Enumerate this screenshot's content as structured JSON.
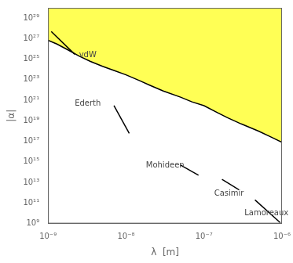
{
  "chart_data": {
    "type": "line",
    "log": true,
    "grid": false,
    "x_label": "λ  [m]",
    "y_label": "|α|",
    "xlim": [
      1e-09,
      1e-06
    ],
    "ylim": [
      1000000000.0,
      1e+30
    ],
    "xticks": [
      {
        "value": 1e-09,
        "label": "10⁻⁹"
      },
      {
        "value": 1e-08,
        "label": "10⁻⁸"
      },
      {
        "value": 1e-07,
        "label": "10⁻⁷"
      },
      {
        "value": 1e-06,
        "label": "10⁻⁶"
      }
    ],
    "yticks": [
      {
        "value": 1000000000.0,
        "label": "10⁹"
      },
      {
        "value": 100000000000.0,
        "label": "10¹¹"
      },
      {
        "value": 10000000000000.0,
        "label": "10¹³"
      },
      {
        "value": 1000000000000000.0,
        "label": "10¹⁵"
      },
      {
        "value": 1e+17,
        "label": "10¹⁷"
      },
      {
        "value": 1e+19,
        "label": "10¹⁹"
      },
      {
        "value": 1e+21,
        "label": "10²¹"
      },
      {
        "value": 1e+23,
        "label": "10²³"
      },
      {
        "value": 1e+25,
        "label": "10²⁵"
      },
      {
        "value": 1e+27,
        "label": "10²⁷"
      },
      {
        "value": 1e+29,
        "label": "10²⁹"
      }
    ],
    "series": [
      {
        "type": "area",
        "color": "#ffff55",
        "x": [
          1e-09,
          1.3e-09,
          1.8e-09,
          2.5e-09,
          3.5e-09,
          5e-09,
          7e-09,
          1e-08,
          1.5e-08,
          2e-08,
          3e-08,
          5e-08,
          7e-08,
          1e-07,
          1.5e-07,
          2e-07,
          3e-07,
          5e-07,
          7e-07,
          1e-06
        ],
        "values": [
          7e+26,
          3e+26,
          8e+25,
          2e+25,
          6e+24,
          2e+24,
          8e+23,
          3e+23,
          8e+22,
          3e+22,
          8e+21,
          2e+21,
          7e+20,
          3e+20,
          6e+19,
          2e+19,
          5e+18,
          1e+18,
          3e+17,
          8e+16
        ]
      },
      {
        "type": "line",
        "color": "#000000",
        "x": [
          1e-09,
          1.3e-09,
          1.8e-09,
          2.5e-09,
          3.5e-09,
          5e-09,
          7e-09,
          1e-08,
          1.5e-08,
          2e-08,
          3e-08,
          5e-08,
          7e-08,
          1e-07,
          1.5e-07,
          2e-07,
          3e-07,
          5e-07,
          7e-07,
          1e-06
        ],
        "values": [
          7e+26,
          3e+26,
          8e+25,
          2e+25,
          6e+24,
          2e+24,
          8e+23,
          3e+23,
          8e+22,
          3e+22,
          8e+21,
          2e+21,
          7e+20,
          3e+20,
          6e+19,
          2e+19,
          5e+18,
          1e+18,
          3e+17,
          8e+16
        ]
      },
      {
        "type": "line",
        "color": "#000000",
        "x": [
          1.1e-09,
          2.2e-09
        ],
        "values": [
          5e+27,
          3e+25
        ]
      },
      {
        "type": "line",
        "color": "#000000",
        "x": [
          7e-09,
          1.1e-08
        ],
        "values": [
          3e+20,
          6e+17
        ]
      },
      {
        "type": "line",
        "color": "#000000",
        "x": [
          5e-08,
          8.5e-08
        ],
        "values": [
          500000000000000.0,
          50000000000000.0
        ]
      },
      {
        "type": "line",
        "color": "#000000",
        "x": [
          1.7e-07,
          2.8e-07
        ],
        "values": [
          20000000000000.0,
          2000000000000.0
        ]
      },
      {
        "type": "line",
        "color": "#000000",
        "x": [
          4.5e-07,
          9.5e-07
        ],
        "values": [
          200000000000.0,
          1200000000.0
        ]
      }
    ],
    "annotations": [
      {
        "text": "vdW",
        "x": 2.5e-09,
        "y": 1.5e+25,
        "color": "#444444"
      },
      {
        "text": "Ederth",
        "x": 2.2e-09,
        "y": 3e+20,
        "color": "#444444"
      },
      {
        "text": "Mohideen",
        "x": 1.8e-08,
        "y": 300000000000000.0,
        "color": "#444444"
      },
      {
        "text": "Casimir",
        "x": 1.35e-07,
        "y": 500000000000.0,
        "color": "#444444"
      },
      {
        "text": "Lamoreaux",
        "x": 3.3e-07,
        "y": 6000000000.0,
        "color": "#444444"
      }
    ]
  }
}
